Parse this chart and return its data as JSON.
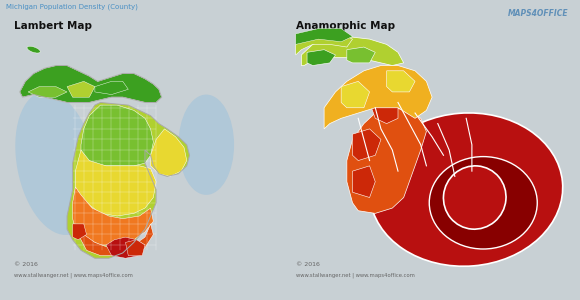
{
  "title_top": "Michigan Population Density (County)",
  "label_left": "Lambert Map",
  "label_right": "Anamorphic Map",
  "outer_bg": "#c8d0d4",
  "panel_bg": "#e8eaec",
  "water_color": "#b0c8d8",
  "footer_left": "© 2016",
  "footer_site": "www.stallwanger.net | www.maps4office.com",
  "logo_text": "MAPS4OFFICE",
  "title_color": "#4a90c4",
  "label_color": "#111111",
  "footer_color": "#666666",
  "colors": {
    "dark_green": "#1a6b1a",
    "medium_green": "#3ca020",
    "light_green": "#78c030",
    "yellow_green": "#b0d030",
    "yellow": "#e8d830",
    "yellow_orange": "#f0b020",
    "light_orange": "#f07820",
    "orange": "#e05010",
    "red_orange": "#cc2808",
    "red": "#b81010",
    "dark_red": "#880000",
    "white_panel": "#f0f2f4"
  }
}
